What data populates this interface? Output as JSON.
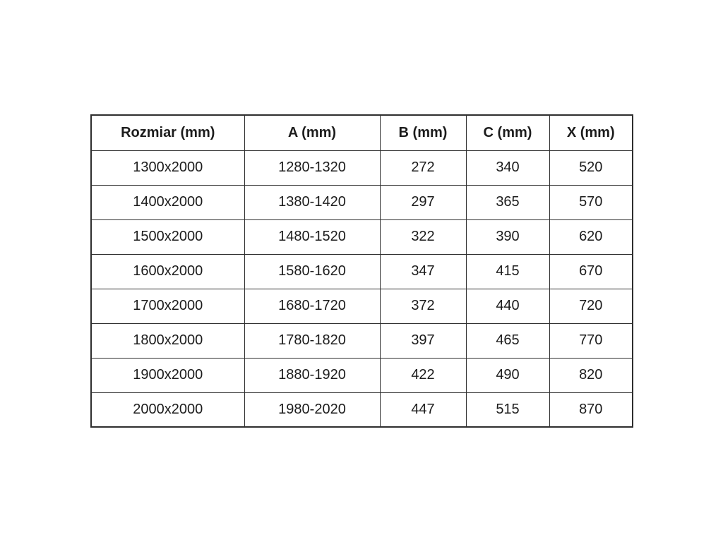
{
  "colors": {
    "background": "#ffffff",
    "border": "#2e2e2e",
    "text": "#1c1c1c"
  },
  "chart_data": {
    "type": "table",
    "title": "",
    "columns": [
      "Rozmiar (mm)",
      "A (mm)",
      "B (mm)",
      "C (mm)",
      "X (mm)"
    ],
    "rows": [
      [
        "1300x2000",
        "1280-1320",
        "272",
        "340",
        "520"
      ],
      [
        "1400x2000",
        "1380-1420",
        "297",
        "365",
        "570"
      ],
      [
        "1500x2000",
        "1480-1520",
        "322",
        "390",
        "620"
      ],
      [
        "1600x2000",
        "1580-1620",
        "347",
        "415",
        "670"
      ],
      [
        "1700x2000",
        "1680-1720",
        "372",
        "440",
        "720"
      ],
      [
        "1800x2000",
        "1780-1820",
        "397",
        "465",
        "770"
      ],
      [
        "1900x2000",
        "1880-1920",
        "422",
        "490",
        "820"
      ],
      [
        "2000x2000",
        "1980-2020",
        "447",
        "515",
        "870"
      ]
    ]
  }
}
